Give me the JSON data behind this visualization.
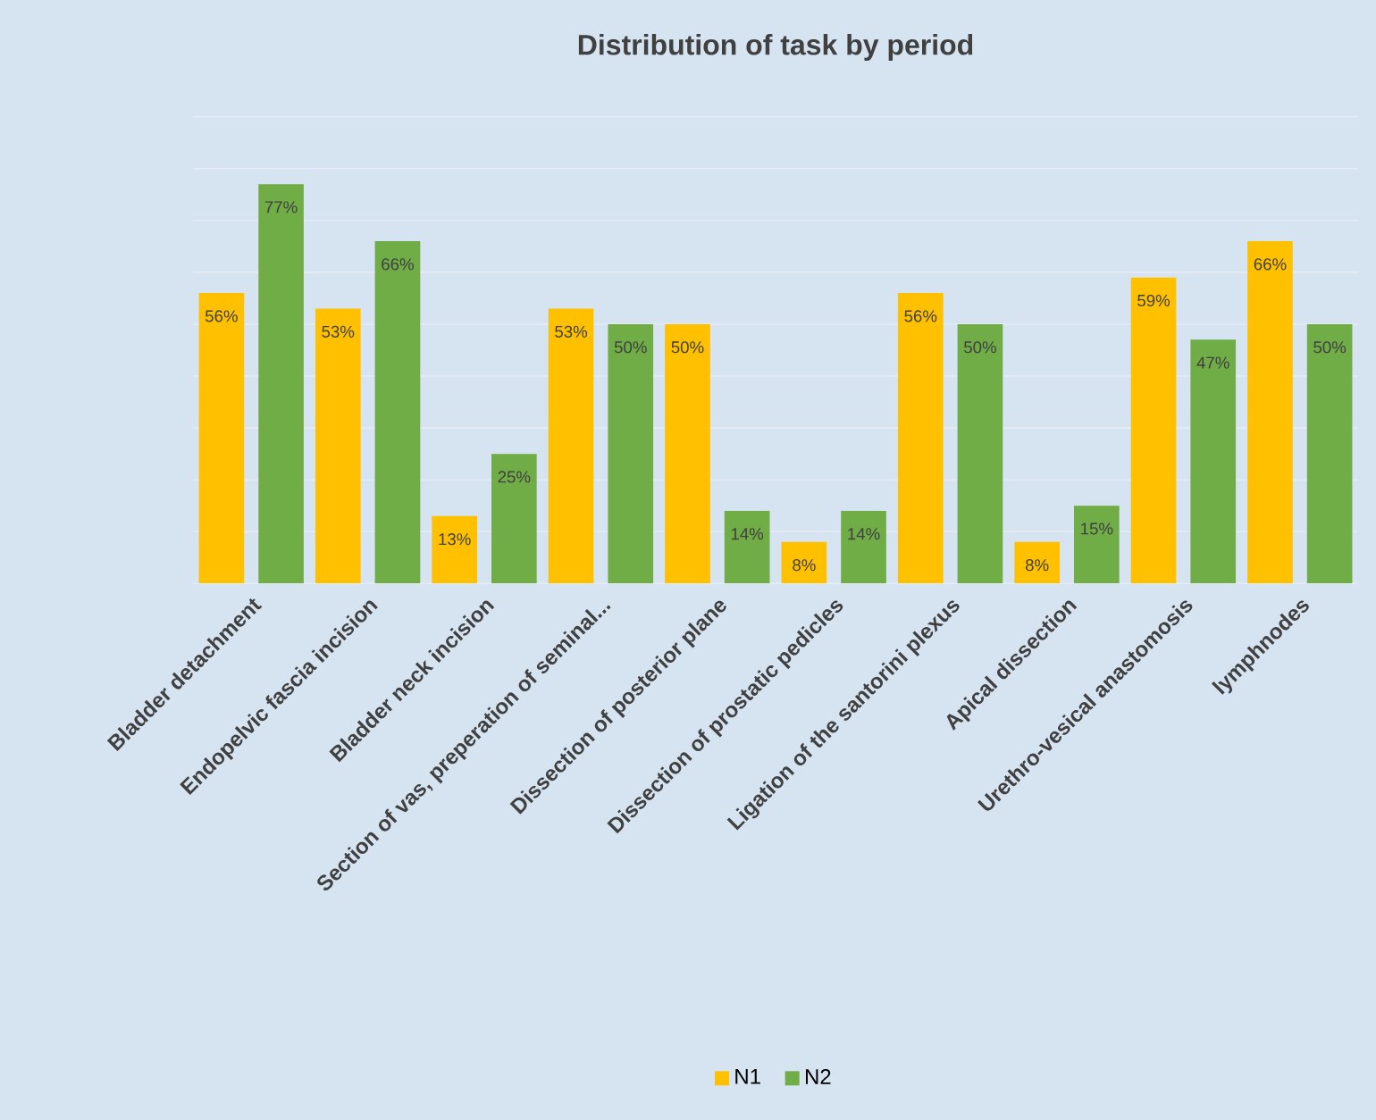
{
  "chart_data": {
    "type": "bar",
    "title": "Distribution of task by period",
    "categories": [
      "Bladder detachment",
      "Endopelvic fascia incision",
      "Bladder neck incision",
      "Section of vas, preperation of seminal...",
      "Dissection of posterior plane",
      "Dissection of prostatic pedicles",
      "Ligation of the santorini plexus",
      "Apical dissection",
      "Urethro-vesical anastomosis",
      "lymphnodes"
    ],
    "series": [
      {
        "name": "N1",
        "color": "#ffc000",
        "values": [
          56,
          53,
          13,
          53,
          50,
          8,
          56,
          8,
          59,
          66
        ],
        "value_labels": [
          "56%",
          "53%",
          "13%",
          "53%",
          "50%",
          "8%",
          "56%",
          "8%",
          "59%",
          "66%"
        ]
      },
      {
        "name": "N2",
        "color": "#70ad47",
        "values": [
          77,
          66,
          25,
          50,
          14,
          14,
          50,
          15,
          47,
          50
        ],
        "value_labels": [
          "77%",
          "66%",
          "25%",
          "50%",
          "14%",
          "14%",
          "50%",
          "15%",
          "47%",
          "50%"
        ]
      }
    ],
    "ylim": [
      0,
      90
    ],
    "yticks": [
      {
        "value": 0,
        "label": null
      },
      {
        "value": 10,
        "label": null
      },
      {
        "value": 20,
        "label": null
      },
      {
        "value": 30,
        "label": null
      },
      {
        "value": 40,
        "label": null
      },
      {
        "value": 50,
        "label": null
      },
      {
        "value": 60,
        "label": null
      },
      {
        "value": 70,
        "label": null
      },
      {
        "value": 80,
        "label": null
      },
      {
        "value": 90,
        "label": null
      }
    ],
    "grid": "y",
    "tick_labels": "x",
    "legend": "bottom"
  }
}
